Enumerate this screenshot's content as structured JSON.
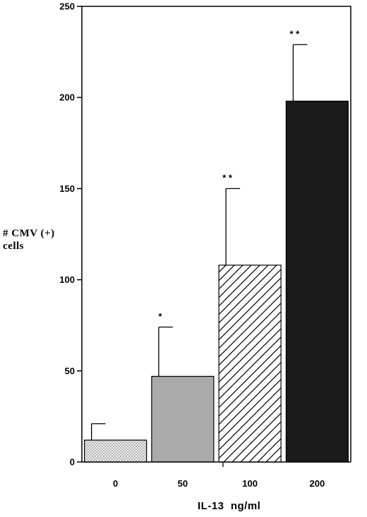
{
  "chart_data": {
    "type": "bar",
    "categories": [
      "0",
      "50",
      "100",
      "200"
    ],
    "values": [
      12,
      47,
      108,
      198
    ],
    "errors": [
      9,
      27,
      42,
      31
    ],
    "significance": [
      "",
      "*",
      "* *",
      "* *"
    ],
    "fills": [
      "dotted",
      "light-gray",
      "diagonal-hatch",
      "black"
    ],
    "ylim": [
      0,
      250
    ],
    "yticks": [
      0,
      50,
      100,
      150,
      200,
      250
    ],
    "ylabel_line1": "# CMV (+)",
    "ylabel_line2": "cells",
    "xlabel": "IL-13  ng/ml",
    "legend": "none",
    "grid": false,
    "colors": {
      "axis": "#000000",
      "bar_gray": "#aaaaaa",
      "bar_black": "#1a1a1a"
    }
  }
}
